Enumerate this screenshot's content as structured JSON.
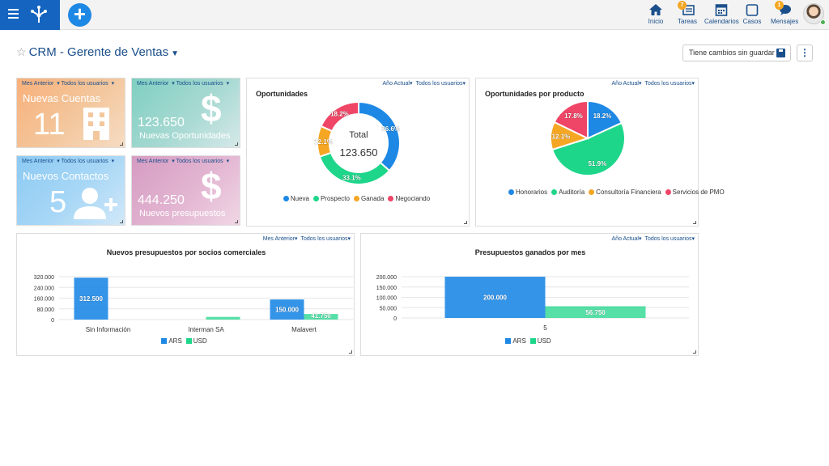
{
  "colors": {
    "brand": "#1565c0",
    "nav": "#1a4f8b",
    "blue": "#1e88e5",
    "green": "#1ed68a",
    "orange": "#f5a623",
    "red": "#ef4566"
  },
  "nav": {
    "inicio": "Inicio",
    "tareas": "Tareas",
    "tareas_badge": "7",
    "calendarios": "Calendarios",
    "casos": "Casos",
    "mensajes": "Mensajes",
    "mensajes_badge": "1"
  },
  "header": {
    "title": "CRM - Gerente de Ventas",
    "save_label": "Tiene cambios sin guardar"
  },
  "filters": {
    "period_month": "Mes Anterior",
    "period_year": "Año Actual",
    "users": "Todos los usuarios"
  },
  "tiles": {
    "cuentas": {
      "label": "Nuevas Cuentas",
      "value": "11"
    },
    "oportunidades": {
      "label": "Nuevas Oportunidades",
      "value": "123.650"
    },
    "contactos": {
      "label": "Nuevos Contactos",
      "value": "5"
    },
    "presupuestos": {
      "label": "Nuevos presupuestos",
      "value": "444.250"
    }
  },
  "chart_data": [
    {
      "type": "pie",
      "title": "Oportunidades",
      "center_label": "Total",
      "center_value": "123.650",
      "slices": [
        {
          "name": "Nueva",
          "value": 36.6,
          "label": "36.6%"
        },
        {
          "name": "Prospecto",
          "value": 33.1,
          "label": "33.1%"
        },
        {
          "name": "Ganada",
          "value": 12.1,
          "label": "12.1%"
        },
        {
          "name": "Negociando",
          "value": 18.2,
          "label": "18.2%"
        }
      ]
    },
    {
      "type": "pie",
      "title": "Oportunidades por producto",
      "slices": [
        {
          "name": "Honorarios",
          "value": 18.2,
          "label": "18.2%"
        },
        {
          "name": "Auditoría",
          "value": 51.9,
          "label": "51.9%"
        },
        {
          "name": "Consultoría Financiera",
          "value": 12.1,
          "label": "12.1%"
        },
        {
          "name": "Servicios de PMO",
          "value": 17.8,
          "label": "17.8%"
        }
      ]
    },
    {
      "type": "bar",
      "title": "Nuevos presupuestos por socios comerciales",
      "categories": [
        "Sin Información",
        "Interman SA",
        "Malavert"
      ],
      "series": [
        {
          "name": "ARS",
          "values": [
            312500,
            0,
            150000
          ],
          "labels": [
            "312.500",
            "",
            "150.000"
          ]
        },
        {
          "name": "USD",
          "values": [
            0,
            20000,
            41750
          ],
          "labels": [
            "",
            "",
            "41.750"
          ]
        }
      ],
      "yticks": [
        "0",
        "80.000",
        "160.000",
        "240.000",
        "320.000"
      ],
      "ylim": [
        0,
        320000
      ]
    },
    {
      "type": "bar",
      "title": "Presupuestos ganados por mes",
      "categories": [
        "5"
      ],
      "series": [
        {
          "name": "ARS",
          "values": [
            200000
          ],
          "labels": [
            "200.000"
          ]
        },
        {
          "name": "USD",
          "values": [
            56750
          ],
          "labels": [
            "56.750"
          ]
        }
      ],
      "yticks": [
        "0",
        "50.000",
        "100.000",
        "150.000",
        "200.000"
      ],
      "ylim": [
        0,
        200000
      ]
    }
  ]
}
